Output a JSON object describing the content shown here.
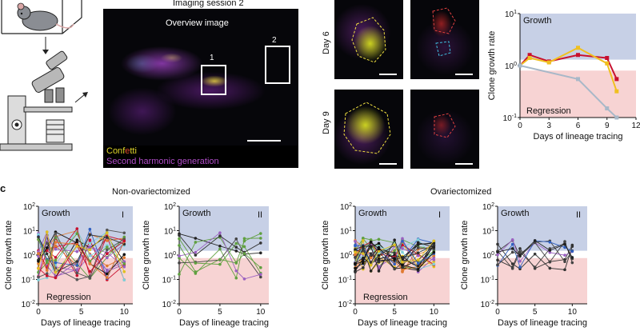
{
  "panel_a": {
    "title": "Imaging session 2",
    "overview_label": "Overview image",
    "roi_1": "1",
    "roi_2": "2",
    "legend_confetti_parts": [
      "Con",
      "f",
      "e",
      "tt",
      "i"
    ],
    "legend_confetti_colors": [
      "#e0d62a",
      "#e0d62a",
      "#e04a2a",
      "#e0d62a",
      "#e0d62a"
    ],
    "legend_shg": "Second harmonic generation",
    "legend_shg_color": "#b04cc8"
  },
  "panel_b": {
    "day6": "Day 6",
    "day9": "Day 9"
  },
  "panel_c_label": "c",
  "group_titles": {
    "left": "Non-ovariectomized",
    "right": "Ovariectomized"
  },
  "colors": {
    "growth_bg": "#c7d0e6",
    "regression_bg": "#f7d3d3",
    "yellow": "#f0c020",
    "red": "#c8102e",
    "grey": "#a8b8c8"
  },
  "chart_data": [
    {
      "id": "top-right",
      "type": "line",
      "ylabel": "Clone growth rate",
      "xlabel": "Days of lineage tracing",
      "yscale": "log",
      "ylim": [
        0.1,
        10
      ],
      "xlim": [
        0,
        12
      ],
      "xticks": [
        "0",
        "3",
        "6",
        "9",
        "12"
      ],
      "yticks": [
        "10^1",
        "10^0",
        "10^-1"
      ],
      "band_labels": {
        "growth": "Growth",
        "regression": "Regression"
      },
      "series": [
        {
          "color": "#c8102e",
          "x": [
            0,
            1,
            3,
            6,
            9,
            10
          ],
          "y": [
            1.0,
            1.6,
            1.2,
            1.6,
            1.4,
            0.55
          ]
        },
        {
          "color": "#f0c020",
          "x": [
            0,
            1,
            3,
            6,
            9,
            10
          ],
          "y": [
            1.0,
            1.4,
            1.15,
            2.2,
            1.1,
            0.32
          ]
        },
        {
          "color": "#a8b8c8",
          "x": [
            0,
            6,
            9,
            10
          ],
          "y": [
            1.0,
            0.55,
            0.15,
            0.1
          ]
        }
      ]
    },
    {
      "id": "c-nonovx-I",
      "type": "line",
      "ylabel": "Clone growth rate",
      "xlabel": "Days of lineage tracing",
      "yscale": "log",
      "ylim": [
        0.01,
        100
      ],
      "xlim": [
        0,
        11
      ],
      "xticks": [
        "0",
        "5",
        "10"
      ],
      "yticks": [
        "10^2",
        "10^1",
        "10^0",
        "10^-1",
        "10^-2"
      ],
      "band_labels": {
        "growth": "Growth",
        "regression": "Regression"
      },
      "roman": "I"
    },
    {
      "id": "c-nonovx-II",
      "type": "line",
      "ylabel": "Clone growth rate",
      "xlabel": "Days of lineage tracing",
      "yscale": "log",
      "ylim": [
        0.01,
        100
      ],
      "xlim": [
        0,
        11
      ],
      "xticks": [
        "0",
        "5",
        "10"
      ],
      "yticks": [
        "10^2",
        "10^1",
        "10^0",
        "10^-1",
        "10^-2"
      ],
      "band_labels": {
        "growth": "Growth"
      },
      "roman": "II"
    },
    {
      "id": "c-ovx-I",
      "type": "line",
      "ylabel": "Clone growth rate",
      "xlabel": "Days of lineage tracing",
      "yscale": "log",
      "ylim": [
        0.01,
        100
      ],
      "xlim": [
        0,
        12
      ],
      "xticks": [
        "0",
        "5",
        "10"
      ],
      "yticks": [
        "10^2",
        "10^1",
        "10^0",
        "10^-1",
        "10^-2"
      ],
      "band_labels": {
        "growth": "Growth",
        "regression": "Regression"
      },
      "roman": "I"
    },
    {
      "id": "c-ovx-II",
      "type": "line",
      "ylabel": "Clone growth rate",
      "xlabel": "Days of lineage tracing",
      "yscale": "log",
      "ylim": [
        0.01,
        100
      ],
      "xlim": [
        0,
        12
      ],
      "xticks": [
        "0",
        "5",
        "10"
      ],
      "yticks": [
        "10^2",
        "10^1",
        "10^0",
        "10^-1",
        "10^-2"
      ],
      "band_labels": {
        "growth": "Growth"
      },
      "roman": "II"
    }
  ]
}
